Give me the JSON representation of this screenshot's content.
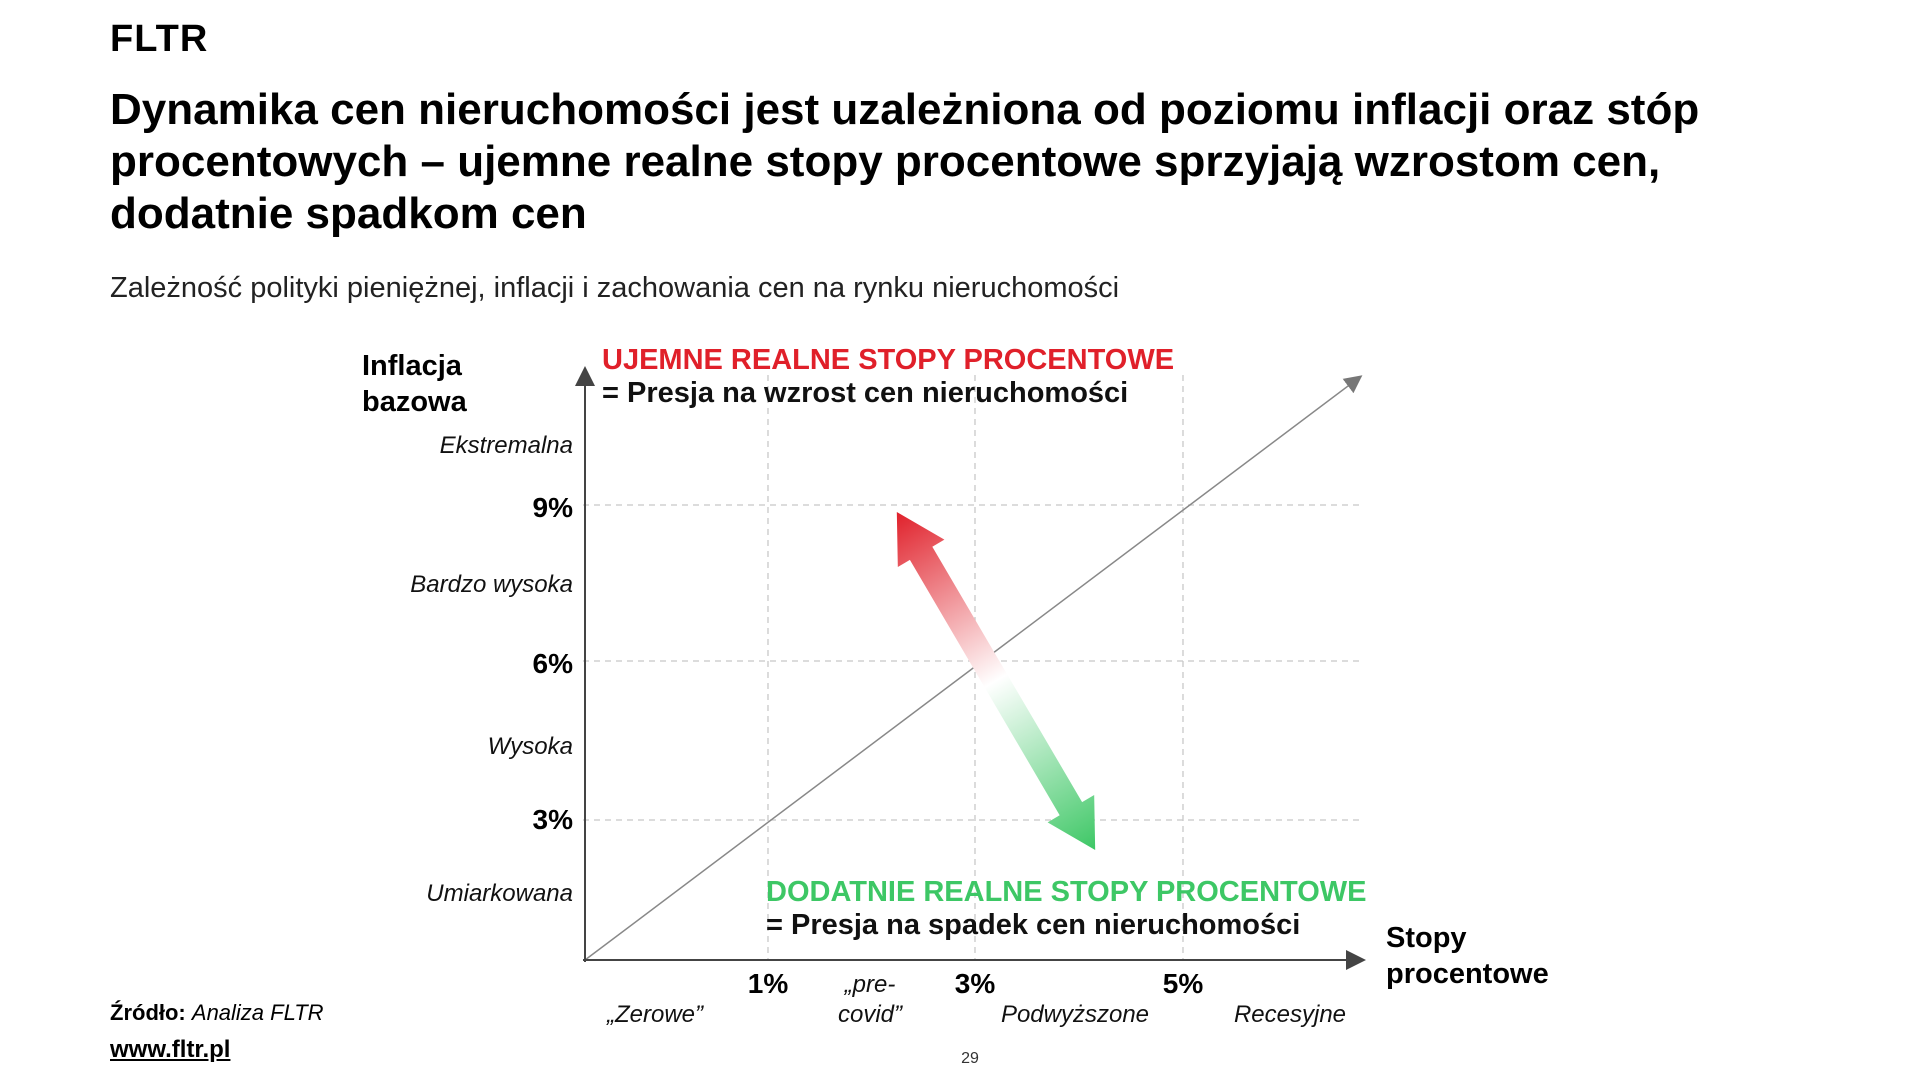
{
  "header": {
    "logo": "FLTR",
    "title": "Dynamika cen nieruchomości jest uzależniona od poziomu inflacji oraz stóp procentowych – ujemne realne stopy procentowe sprzyjają wzrostom cen, dodatnie spadkom cen",
    "subtitle": "Zależność polityki pieniężnej, inflacji i zachowania cen na rynku nieruchomości"
  },
  "diagram": {
    "y_axis_title_line1": "Inflacja",
    "y_axis_title_line2": "bazowa",
    "x_axis_title_line1": "Stopy",
    "x_axis_title_line2": "procentowe",
    "y_levels": [
      "Ekstremalna",
      "Bardzo wysoka",
      "Wysoka",
      "Umiarkowana"
    ],
    "y_ticks": [
      "9%",
      "6%",
      "3%"
    ],
    "x_ticks": [
      "1%",
      "3%",
      "5%"
    ],
    "x_categories": {
      "zerowe": "„Zerowe”",
      "precovid_line1": "„pre-",
      "precovid_line2": "covid”",
      "podwyzszone": "Podwyższone",
      "recesyjne": "Recesyjne"
    },
    "negative_note": {
      "head": "UJEMNE REALNE STOPY PROCENTOWE",
      "sub": "= Presja na wzrost cen nieruchomości",
      "color": "#e0202a"
    },
    "positive_note": {
      "head": "DODATNIE REALNE STOPY PROCENTOWE",
      "sub": "= Presja na spadek cen nieruchomości",
      "color": "#3dc765"
    }
  },
  "footer": {
    "source_label": "Źródło:",
    "source_value": "Analiza FLTR",
    "url": "www.fltr.pl",
    "page_number": "29"
  }
}
